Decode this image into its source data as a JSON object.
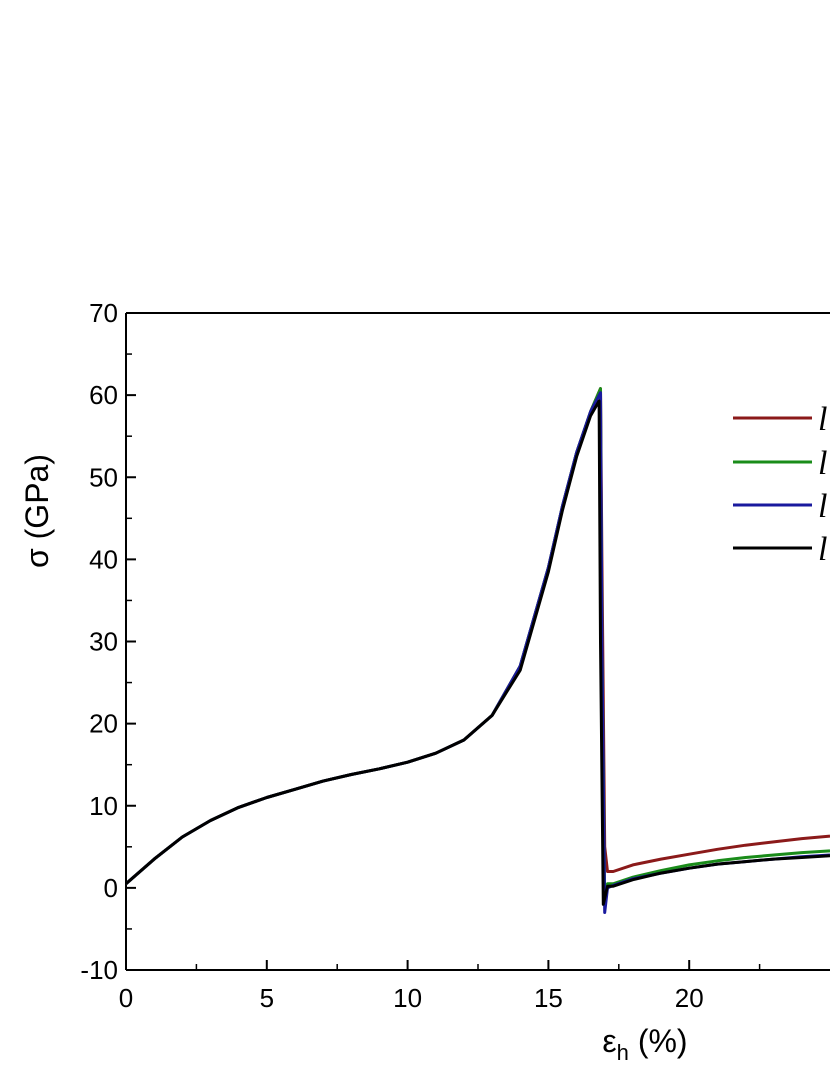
{
  "chart_data": {
    "type": "line",
    "xlabel": {
      "main": "ε",
      "sub": "h",
      "rest": " (%)"
    },
    "ylabel": "σ (GPa)",
    "xlim": [
      0,
      25
    ],
    "ylim": [
      -10,
      70
    ],
    "x_ticks": [
      "0",
      "5",
      "10",
      "15",
      "20"
    ],
    "y_ticks": [
      "-10",
      "0",
      "10",
      "20",
      "30",
      "40",
      "50",
      "60",
      "70"
    ],
    "grid": false,
    "legend_position": "right",
    "legend_labels": [
      "l",
      "l",
      "l",
      "l"
    ],
    "series": [
      {
        "color": "#8b1a1a",
        "x": [
          0,
          1,
          2,
          3,
          4,
          5,
          6,
          7,
          8,
          9,
          10,
          11,
          12,
          13,
          14,
          15,
          15.5,
          16,
          16.5,
          16.85,
          16.9,
          17.0,
          17.1,
          17.3,
          18,
          19,
          20,
          21,
          22,
          23,
          24,
          25
        ],
        "y": [
          0.5,
          3.5,
          6.2,
          8.2,
          9.8,
          11.0,
          12.0,
          13.0,
          13.8,
          14.5,
          15.3,
          16.4,
          18.0,
          21.0,
          27.0,
          39.0,
          46.5,
          53.0,
          58.0,
          60.8,
          40,
          5,
          2.0,
          2.0,
          2.8,
          3.5,
          4.1,
          4.7,
          5.2,
          5.6,
          6.0,
          6.3
        ]
      },
      {
        "color": "#1a8c1a",
        "x": [
          0,
          1,
          2,
          3,
          4,
          5,
          6,
          7,
          8,
          9,
          10,
          11,
          12,
          13,
          14,
          15,
          15.5,
          16,
          16.5,
          16.85,
          16.9,
          17.0,
          17.1,
          17.3,
          18,
          19,
          20,
          21,
          22,
          23,
          24,
          25
        ],
        "y": [
          0.5,
          3.5,
          6.2,
          8.2,
          9.8,
          11.0,
          12.0,
          13.0,
          13.8,
          14.5,
          15.3,
          16.4,
          18.0,
          21.0,
          27.0,
          39.0,
          46.5,
          53.0,
          58.0,
          60.8,
          30,
          -1.5,
          0.5,
          0.5,
          1.3,
          2.1,
          2.8,
          3.3,
          3.7,
          4.0,
          4.3,
          4.5
        ]
      },
      {
        "color": "#1a1a9e",
        "x": [
          0,
          1,
          2,
          3,
          4,
          5,
          6,
          7,
          8,
          9,
          10,
          11,
          12,
          13,
          14,
          15,
          15.5,
          16,
          16.5,
          16.85,
          16.9,
          17.0,
          17.1,
          17.3,
          18,
          19,
          20,
          21,
          22,
          23,
          24,
          25
        ],
        "y": [
          0.5,
          3.5,
          6.2,
          8.2,
          9.8,
          11.0,
          12.0,
          13.0,
          13.8,
          14.5,
          15.3,
          16.4,
          18.0,
          21.0,
          27.0,
          39.0,
          46.5,
          53.0,
          58.0,
          60.3,
          30,
          -3.0,
          0.0,
          0.3,
          1.1,
          1.8,
          2.4,
          2.9,
          3.2,
          3.5,
          3.8,
          4.0
        ]
      },
      {
        "color": "#000000",
        "x": [
          0,
          1,
          2,
          3,
          4,
          5,
          6,
          7,
          8,
          9,
          10,
          11,
          12,
          13,
          14,
          15,
          15.5,
          16,
          16.5,
          16.8,
          16.85,
          16.95,
          17.1,
          17.3,
          18,
          19,
          20,
          21,
          22,
          23,
          24,
          25
        ],
        "y": [
          0.5,
          3.5,
          6.2,
          8.2,
          9.8,
          11.0,
          12.0,
          13.0,
          13.8,
          14.5,
          15.3,
          16.4,
          18.0,
          21.0,
          26.5,
          38.5,
          46.0,
          52.5,
          57.5,
          59.3,
          30,
          -2.0,
          0.2,
          0.2,
          1.0,
          1.8,
          2.4,
          2.9,
          3.2,
          3.5,
          3.7,
          3.9
        ]
      }
    ]
  }
}
